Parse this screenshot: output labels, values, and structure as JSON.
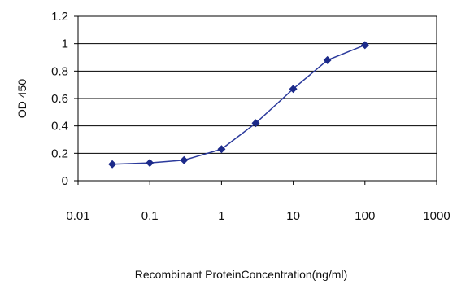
{
  "chart_data": {
    "type": "line",
    "xlabel": "Recombinant ProteinConcentration(ng/ml)",
    "ylabel": "OD 450",
    "x_scale": "log",
    "xlim": [
      0.01,
      1000
    ],
    "ylim": [
      0,
      1.2
    ],
    "x_ticks": [
      "0.01",
      "0.1",
      "1",
      "10",
      "100",
      "1000"
    ],
    "y_ticks": [
      "0",
      "0.2",
      "0.4",
      "0.6",
      "0.8",
      "1",
      "1.2"
    ],
    "grid": "horizontal",
    "plot_background": "#ffffff",
    "line_color": "#2b3a9c",
    "marker_color": "#1c2a8a",
    "series": [
      {
        "x": [
          0.03,
          0.1,
          0.3,
          1,
          3,
          10,
          30,
          100
        ],
        "values": [
          0.12,
          0.13,
          0.15,
          0.23,
          0.42,
          0.67,
          0.88,
          0.99
        ]
      }
    ]
  }
}
